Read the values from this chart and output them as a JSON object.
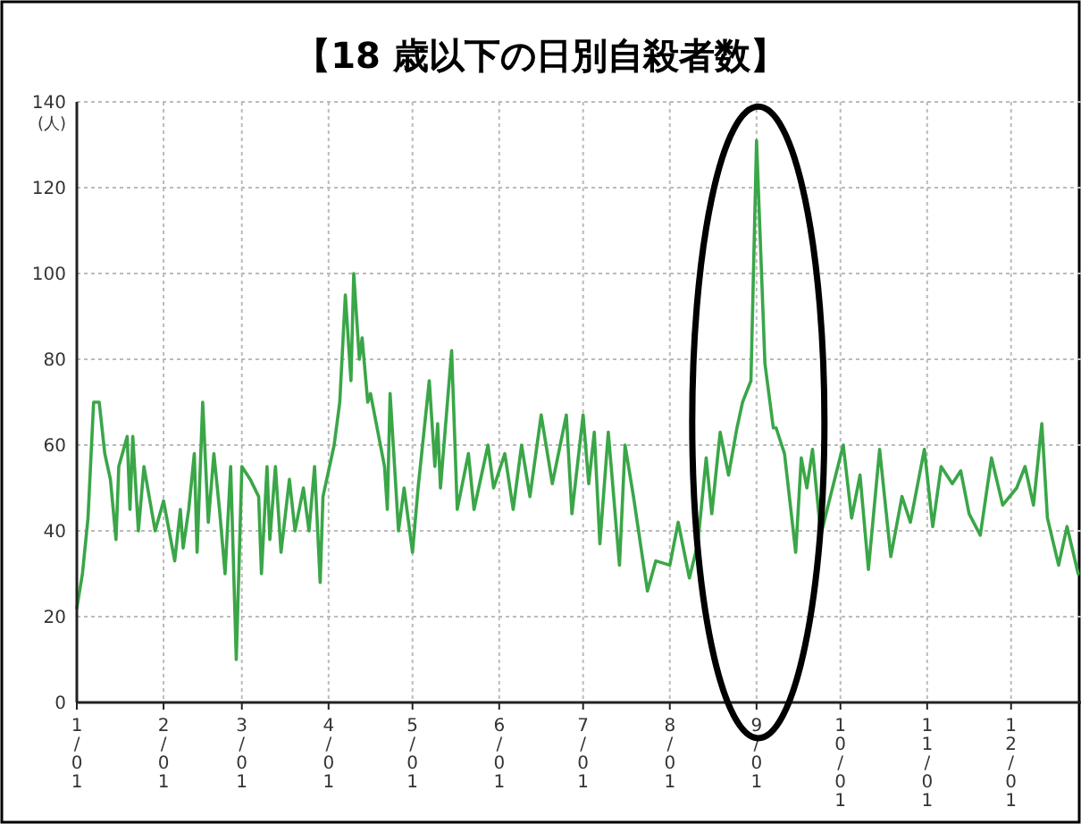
{
  "chart_data": {
    "type": "line",
    "title": "【18 歳以下の日別自殺者数】",
    "ylabel": "(人)",
    "x": [
      "--01-01",
      "--01-03",
      "--01-05",
      "--01-07",
      "--01-09",
      "--01-11",
      "--01-13",
      "--01-15",
      "--01-16",
      "--01-19",
      "--01-20",
      "--01-21",
      "--01-23",
      "--01-25",
      "--01-29",
      "--02-01",
      "--02-05",
      "--02-07",
      "--02-08",
      "--02-10",
      "--02-12",
      "--02-13",
      "--02-15",
      "--02-17",
      "--02-19",
      "--02-21",
      "--02-23",
      "--02-25",
      "--02-27",
      "--03-01",
      "--03-04",
      "--03-07",
      "--03-08",
      "--03-10",
      "--03-11",
      "--03-13",
      "--03-15",
      "--03-18",
      "--03-20",
      "--03-23",
      "--03-25",
      "--03-27",
      "--03-29",
      "--03-30",
      "--04-03",
      "--04-05",
      "--04-07",
      "--04-09",
      "--04-10",
      "--04-12",
      "--04-13",
      "--04-15",
      "--04-16",
      "--04-21",
      "--04-22",
      "--04-23",
      "--04-26",
      "--04-28",
      "--05-01",
      "--05-03",
      "--05-07",
      "--05-09",
      "--05-10",
      "--05-11",
      "--05-15",
      "--05-17",
      "--05-21",
      "--05-23",
      "--05-28",
      "--05-30",
      "--06-03",
      "--06-06",
      "--06-09",
      "--06-12",
      "--06-16",
      "--06-20",
      "--06-25",
      "--06-27",
      "--07-01",
      "--07-03",
      "--07-05",
      "--07-07",
      "--07-10",
      "--07-14",
      "--07-16",
      "--07-19",
      "--07-24",
      "--07-27",
      "--08-01",
      "--08-04",
      "--08-08",
      "--08-11",
      "--08-14",
      "--08-16",
      "--08-19",
      "--08-22",
      "--08-25",
      "--08-27",
      "--08-30",
      "--09-01",
      "--09-04",
      "--09-07",
      "--09-08",
      "--09-11",
      "--09-15",
      "--09-17",
      "--09-19",
      "--09-21",
      "--09-24",
      "--09-27",
      "--10-02",
      "--10-05",
      "--10-08",
      "--10-11",
      "--10-15",
      "--10-19",
      "--10-23",
      "--10-26",
      "--10-31",
      "--11-03",
      "--11-06",
      "--11-10",
      "--11-13",
      "--11-16",
      "--11-20",
      "--11-24",
      "--11-28",
      "--12-03",
      "--12-06",
      "--12-09",
      "--12-12",
      "--12-14",
      "--12-18",
      "--12-21",
      "--12-25"
    ],
    "series": [
      {
        "color": "#3aa648",
        "values": [
          22,
          30,
          43,
          70,
          70,
          58,
          52,
          38,
          55,
          62,
          45,
          62,
          40,
          55,
          40,
          47,
          33,
          45,
          36,
          45,
          58,
          35,
          70,
          42,
          58,
          45,
          30,
          55,
          10,
          55,
          52,
          48,
          30,
          55,
          38,
          55,
          35,
          52,
          40,
          50,
          40,
          55,
          28,
          48,
          60,
          70,
          95,
          75,
          100,
          80,
          85,
          70,
          72,
          55,
          45,
          72,
          40,
          50,
          35,
          50,
          75,
          55,
          65,
          50,
          82,
          45,
          58,
          45,
          60,
          50,
          58,
          45,
          60,
          48,
          67,
          51,
          67,
          44,
          67,
          51,
          63,
          37,
          63,
          32,
          60,
          48,
          26,
          33,
          32,
          42,
          29,
          37,
          57,
          44,
          63,
          53,
          64,
          70,
          75,
          131,
          79,
          64,
          64,
          58,
          35,
          57,
          50,
          59,
          39,
          47,
          60,
          43,
          53,
          31,
          59,
          34,
          48,
          42,
          59,
          41,
          55,
          51,
          54,
          44,
          39,
          57,
          46,
          50,
          55,
          46,
          65,
          43,
          32,
          41,
          30
        ]
      }
    ],
    "xlim": [
      "--01-01",
      "--12-26"
    ],
    "ylim": [
      0,
      140
    ],
    "yticks": [
      0,
      20,
      40,
      60,
      80,
      100,
      120,
      140
    ],
    "xticks": [
      {
        "value": "--01-01",
        "label": "1/01"
      },
      {
        "value": "--02-01",
        "label": "2/01"
      },
      {
        "value": "--03-01",
        "label": "3/01"
      },
      {
        "value": "--04-01",
        "label": "4/01"
      },
      {
        "value": "--05-01",
        "label": "5/01"
      },
      {
        "value": "--06-01",
        "label": "6/01"
      },
      {
        "value": "--07-01",
        "label": "7/01"
      },
      {
        "value": "--08-01",
        "label": "8/01"
      },
      {
        "value": "--09-01",
        "label": "9/01"
      },
      {
        "value": "--10-01",
        "label": "10/01"
      },
      {
        "value": "--11-01",
        "label": "11/01"
      },
      {
        "value": "--12-01",
        "label": "12/01"
      }
    ],
    "grid": true
  }
}
